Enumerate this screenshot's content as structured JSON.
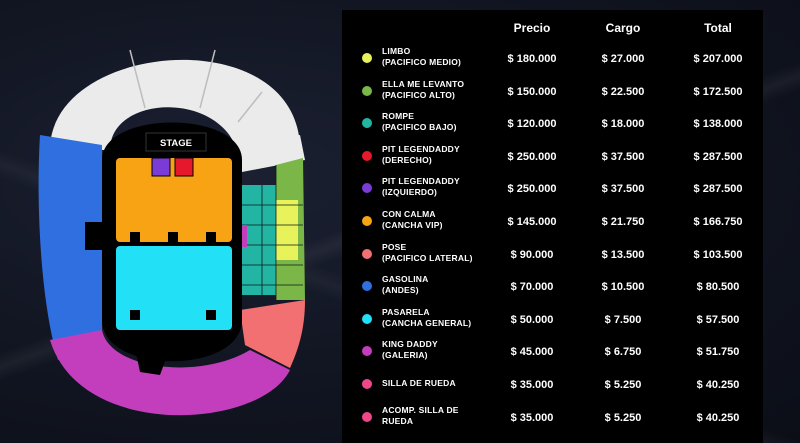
{
  "stadium": {
    "stage_label": "STAGE",
    "colors": {
      "upper_grey": "#ebebeb",
      "andes_blue": "#2f6fe0",
      "galeria_magenta": "#c23ebd",
      "lateral_pink": "#f26f72",
      "cancha_vip_orange": "#f8a313",
      "cancha_general_cyan": "#22e0f5",
      "pit_red": "#e5182c",
      "pit_purple": "#7a3bd6",
      "pacifico_teal": "#22b5a3",
      "pacifico_green": "#7ab648",
      "limbo_yellow": "#e8f25a",
      "silla_de_rueda_pink": "#f0478a"
    }
  },
  "table": {
    "headers": {
      "precio": "Precio",
      "cargo": "Cargo",
      "total": "Total"
    },
    "rows": [
      {
        "line1": "LIMBO",
        "line2": "(PACIFICO MEDIO)",
        "color": "#e8f25a",
        "precio": "$ 180.000",
        "cargo": "$ 27.000",
        "total": "$ 207.000"
      },
      {
        "line1": "ELLA ME LEVANTO",
        "line2": "(PACIFICO ALTO)",
        "color": "#7ab648",
        "precio": "$ 150.000",
        "cargo": "$ 22.500",
        "total": "$ 172.500"
      },
      {
        "line1": "ROMPE",
        "line2": "(PACIFICO BAJO)",
        "color": "#22b5a3",
        "precio": "$ 120.000",
        "cargo": "$ 18.000",
        "total": "$ 138.000"
      },
      {
        "line1": "PIT LEGENDADDY",
        "line2": "(DERECHO)",
        "color": "#e5182c",
        "precio": "$ 250.000",
        "cargo": "$ 37.500",
        "total": "$ 287.500"
      },
      {
        "line1": "PIT LEGENDADDY",
        "line2": "(IZQUIERDO)",
        "color": "#7a3bd6",
        "precio": "$ 250.000",
        "cargo": "$ 37.500",
        "total": "$ 287.500"
      },
      {
        "line1": "CON CALMA",
        "line2": "(CANCHA VIP)",
        "color": "#f8a313",
        "precio": "$ 145.000",
        "cargo": "$ 21.750",
        "total": "$ 166.750"
      },
      {
        "line1": "POSE",
        "line2": "(PACIFICO LATERAL)",
        "color": "#f26f72",
        "precio": "$ 90.000",
        "cargo": "$ 13.500",
        "total": "$ 103.500"
      },
      {
        "line1": "GASOLINA",
        "line2": "(ANDES)",
        "color": "#2f6fe0",
        "precio": "$ 70.000",
        "cargo": "$ 10.500",
        "total": "$ 80.500"
      },
      {
        "line1": "PASARELA",
        "line2": "(CANCHA GENERAL)",
        "color": "#22e0f5",
        "precio": "$ 50.000",
        "cargo": "$ 7.500",
        "total": "$ 57.500"
      },
      {
        "line1": "KING DADDY",
        "line2": "(GALERIA)",
        "color": "#c23ebd",
        "precio": "$ 45.000",
        "cargo": "$ 6.750",
        "total": "$ 51.750"
      },
      {
        "line1": "SILLA DE RUEDA",
        "line2": "",
        "color": "#f0478a",
        "precio": "$ 35.000",
        "cargo": "$ 5.250",
        "total": "$ 40.250"
      },
      {
        "line1": "ACOMP. SILLA DE",
        "line2": "RUEDA",
        "color": "#f0478a",
        "precio": "$ 35.000",
        "cargo": "$ 5.250",
        "total": "$ 40.250"
      }
    ]
  }
}
